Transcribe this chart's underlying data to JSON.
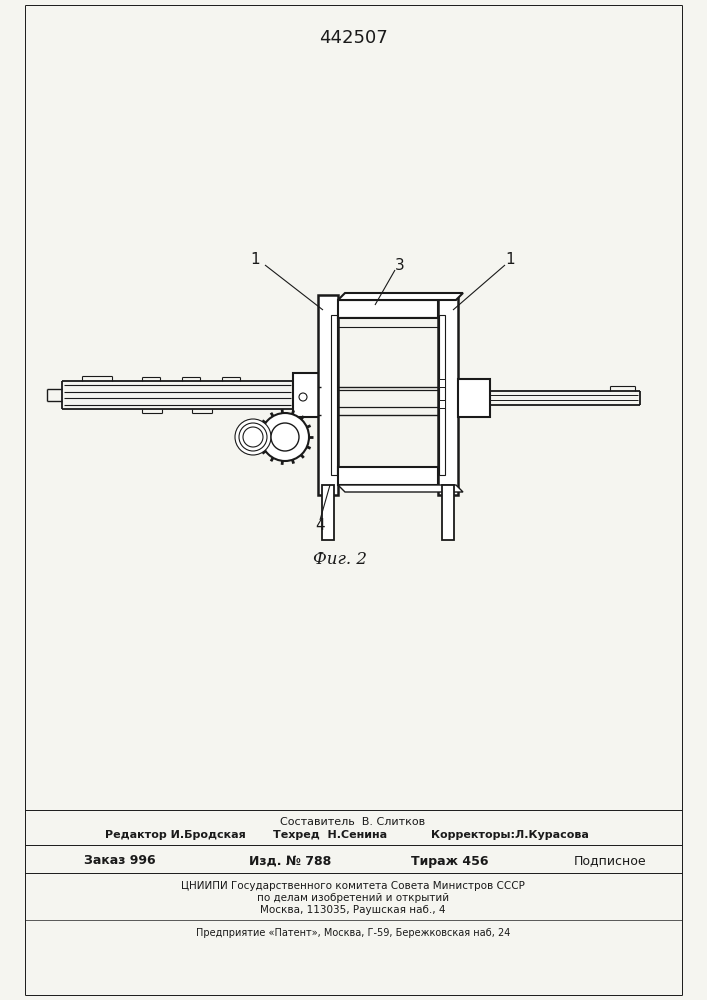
{
  "patent_number": "442507",
  "fig_label": "Фиг. 2",
  "background_color": "#f5f5f0",
  "line_color": "#1a1a1a",
  "label_1_left": "1",
  "label_1_right": "1",
  "label_3": "3",
  "label_4": "4",
  "footer_sestavitel": "Составитель  В. Слитков",
  "footer_redaktor": "Редактор И.Бродская",
  "footer_tehred": "Техред  Н.Сенина",
  "footer_korrektor": "Корректоры:Л.Курасова",
  "footer_zakaz": "Заказ 996",
  "footer_izd": "Изд. № 788",
  "footer_tirazh": "Тираж 456",
  "footer_podpisnoe": "Подписное",
  "footer_cniipи": "ЦНИИПИ Государственного комитета Совета Министров СССР",
  "footer_dela": "по делам изобретений и открытий",
  "footer_moscow": "Москва, 113035, Раушская наб., 4",
  "footer_predpriyatie": "Предприятие «Патент», Москва, Г-59, Бережковская наб, 24"
}
